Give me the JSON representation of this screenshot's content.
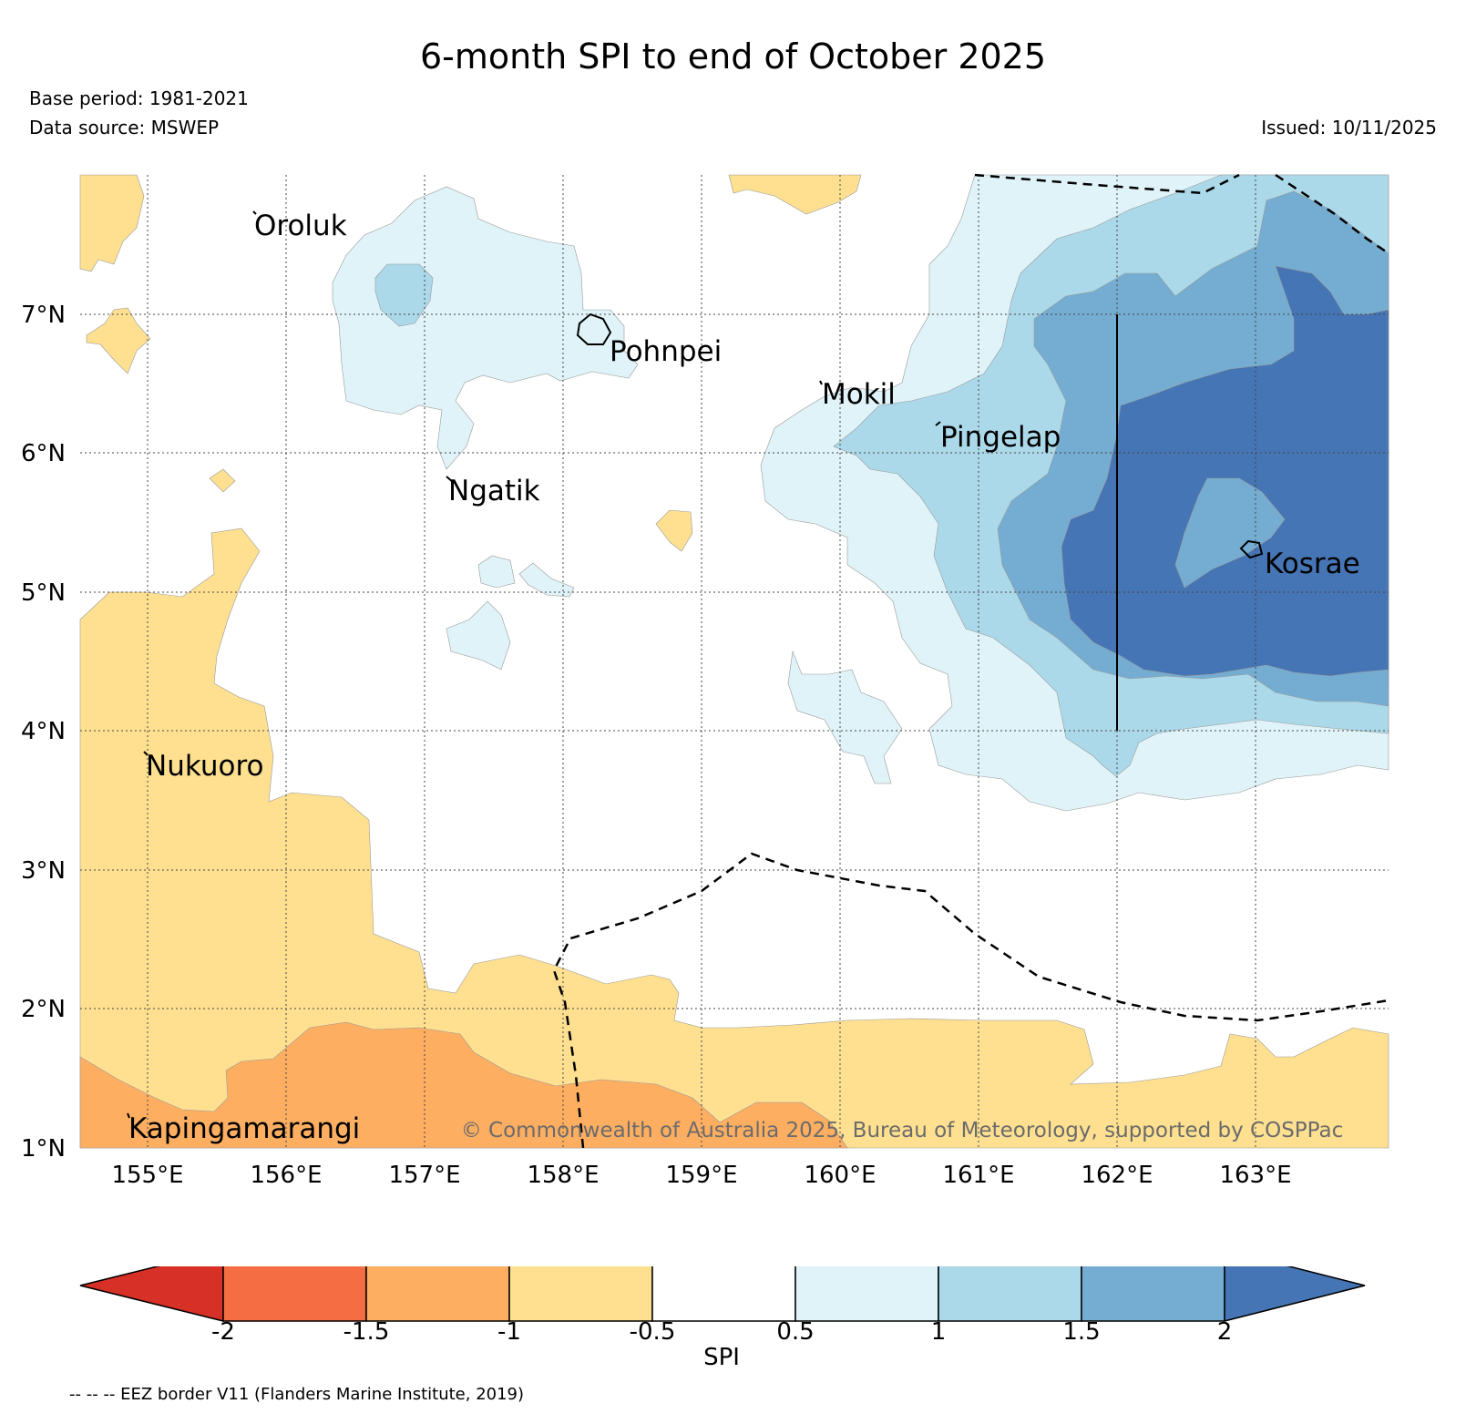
{
  "title": "6-month SPI to end of October 2025",
  "base_period": "Base period: 1981-2021",
  "data_source": "Data source: MSWEP",
  "issued": "Issued: 10/11/2025",
  "map": {
    "lon_range": [
      154.5,
      164.0
    ],
    "lat_range": [
      1.0,
      8.0
    ],
    "lon_ticks": [
      "155°E",
      "156°E",
      "157°E",
      "158°E",
      "159°E",
      "160°E",
      "161°E",
      "162°E",
      "163°E"
    ],
    "lat_ticks": [
      "7°N",
      "6°N",
      "5°N",
      "4°N",
      "3°N",
      "2°N",
      "1°N"
    ],
    "places": [
      {
        "name": "Oroluk",
        "lon": 155.75,
        "lat": 7.65
      },
      {
        "name": "Pohnpei",
        "lon": 158.3,
        "lat": 6.8
      },
      {
        "name": "Mokil",
        "lon": 160.0,
        "lat": 6.45
      },
      {
        "name": "Pingelap",
        "lon": 160.75,
        "lat": 6.2
      },
      {
        "name": "Ngatik",
        "lon": 157.25,
        "lat": 5.8
      },
      {
        "name": "Kosrae",
        "lon": 163.0,
        "lat": 5.3
      },
      {
        "name": "Nukuoro",
        "lon": 154.95,
        "lat": 3.8
      },
      {
        "name": "Kapingamarangi",
        "lon": 154.8,
        "lat": 1.2
      }
    ],
    "copyright": "© Commonwealth of Australia 2025, Bureau of Meteorology, supported by COSPPac"
  },
  "colorbar": {
    "label": "SPI",
    "ticks": [
      "-2",
      "-1.5",
      "-1",
      "-0.5",
      "0.5",
      "1",
      "1.5",
      "2"
    ],
    "colors": [
      "#d73027",
      "#f46d43",
      "#fdae61",
      "#fee090",
      "#ffffff",
      "#e0f3f8",
      "#abd9e9",
      "#74add1",
      "#4575b4"
    ]
  },
  "eez_note": "-- -- -- EEZ border V11 (Flanders Marine Institute, 2019)"
}
